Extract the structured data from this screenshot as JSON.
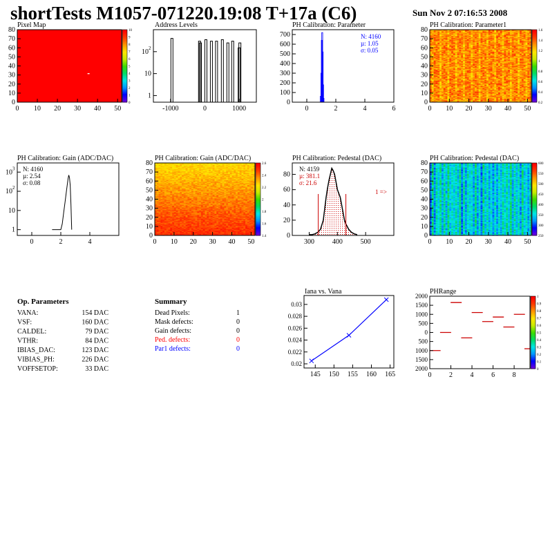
{
  "header": {
    "title": "shortTests M1057-071220.19:08 T+17a (C6)",
    "date": "Sun Nov  2 07:16:53 2008"
  },
  "colors": {
    "red": "#ff0000",
    "blue": "#0000ff",
    "dark_red": "#cc0000",
    "black": "#000000"
  },
  "panels": {
    "pixel_map": {
      "title": "Pixel Map",
      "xticks": [
        "0",
        "10",
        "20",
        "30",
        "40",
        "50"
      ],
      "yticks": [
        "0",
        "10",
        "20",
        "30",
        "40",
        "50",
        "60",
        "70",
        "80"
      ],
      "zticks": [
        "0",
        "1",
        "2",
        "3",
        "4",
        "5",
        "6",
        "7",
        "8",
        "9",
        "10"
      ]
    },
    "address_levels": {
      "title": "Address Levels",
      "xticks": [
        "-1000",
        "0",
        "1000"
      ],
      "yticks": [
        "1",
        "10",
        "10^2"
      ]
    },
    "ph_param": {
      "title": "PH Calibration: Parameter",
      "xticks": [
        "0",
        "2",
        "4",
        "6"
      ],
      "yticks": [
        "0",
        "100",
        "200",
        "300",
        "400",
        "500",
        "600",
        "700"
      ],
      "stats": {
        "n": "N: 4160",
        "mean": "µ: 1.05",
        "sigma": "σ: 0.05"
      }
    },
    "ph_param1": {
      "title": "PH Calibration: Parameter1",
      "xticks": [
        "0",
        "10",
        "20",
        "30",
        "40",
        "50"
      ],
      "yticks": [
        "0",
        "10",
        "20",
        "30",
        "40",
        "50",
        "60",
        "70",
        "80"
      ],
      "zticks": [
        "0.2",
        "0.4",
        "0.6",
        "0.8",
        "1",
        "1.2",
        "1.4",
        "1.6"
      ]
    },
    "gain_hist": {
      "title": "PH Calibration: Gain (ADC/DAC)",
      "xticks": [
        "0",
        "2",
        "4"
      ],
      "yticks": [
        "1",
        "10",
        "10^2",
        "10^3"
      ],
      "stats": {
        "n": "N: 4160",
        "mean": "µ: 2.54",
        "sigma": "σ: 0.08"
      }
    },
    "gain_map": {
      "title": "PH Calibration: Gain (ADC/DAC)",
      "xticks": [
        "0",
        "10",
        "20",
        "30",
        "40",
        "50"
      ],
      "yticks": [
        "0",
        "10",
        "20",
        "30",
        "40",
        "50",
        "60",
        "70",
        "80"
      ],
      "zticks": [
        "1.4",
        "1.6",
        "1.8",
        "2",
        "2.2",
        "2.4",
        "2.6"
      ]
    },
    "pedestal_hist": {
      "title": "PH Calibration: Pedestal (DAC)",
      "xticks": [
        "300",
        "400",
        "500"
      ],
      "yticks": [
        "0",
        "20",
        "40",
        "60",
        "80"
      ],
      "stats": {
        "n": "N: 4159",
        "mean": "µ: 381.1",
        "sigma": "σ: 21.6"
      },
      "arrow_label": "1 =>"
    },
    "pedestal_map": {
      "title": "PH Calibration: Pedestal (DAC)",
      "xticks": [
        "0",
        "10",
        "20",
        "30",
        "40",
        "50"
      ],
      "yticks": [
        "0",
        "10",
        "20",
        "30",
        "40",
        "50",
        "60",
        "70",
        "80"
      ],
      "zticks": [
        "250",
        "300",
        "350",
        "400",
        "450",
        "500",
        "550",
        "600"
      ]
    },
    "iana": {
      "title": "Iana vs. Vana",
      "xticks": [
        "145",
        "150",
        "155",
        "160",
        "165"
      ],
      "yticks": [
        "0.02",
        "0.022",
        "0.024",
        "0.026",
        "0.028",
        "0.03"
      ]
    },
    "phrange": {
      "title": "PHRange",
      "xticks": [
        "0",
        "2",
        "4",
        "6",
        "8"
      ],
      "yticks": [
        "-2000",
        "-1500",
        "-1000",
        "-500",
        "0",
        "500",
        "1000",
        "1500",
        "2000"
      ],
      "yticks_display": [
        "2000",
        "1500",
        "1000",
        "500",
        "0",
        "500",
        "1000",
        "1500",
        "2000"
      ],
      "zticks": [
        "0",
        "0.1",
        "0.2",
        "0.3",
        "0.4",
        "0.5",
        "0.6",
        "0.7",
        "0.8",
        "0.9",
        "1"
      ]
    }
  },
  "op_params": {
    "title": "Op. Parameters",
    "rows": [
      {
        "name": "VANA:",
        "value": "154 DAC"
      },
      {
        "name": "VSF:",
        "value": "160 DAC"
      },
      {
        "name": "CALDEL:",
        "value": "79 DAC"
      },
      {
        "name": "VTHR:",
        "value": "84 DAC"
      },
      {
        "name": "IBIAS_DAC:",
        "value": "123 DAC"
      },
      {
        "name": "VIBIAS_PH:",
        "value": "226 DAC"
      },
      {
        "name": "VOFFSETOP:",
        "value": "33 DAC"
      }
    ]
  },
  "summary": {
    "title": "Summary",
    "rows": [
      {
        "name": "Dead Pixels:",
        "value": "1",
        "color": "#000000"
      },
      {
        "name": "Mask defects:",
        "value": "0",
        "color": "#000000"
      },
      {
        "name": "Gain defects:",
        "value": "0",
        "color": "#000000"
      },
      {
        "name": "Ped. defects:",
        "value": "0",
        "color": "#ff0000"
      },
      {
        "name": "Par1 defects:",
        "value": "0",
        "color": "#0000ff"
      }
    ]
  },
  "chart_data": [
    {
      "type": "heatmap",
      "name": "pixel_map",
      "xlim": [
        0,
        52
      ],
      "ylim": [
        0,
        80
      ],
      "zlim": [
        0,
        10
      ],
      "uniform_value": 10,
      "dead_pixels": [
        {
          "x": 35,
          "y": 31
        }
      ]
    },
    {
      "type": "bar",
      "name": "address_levels",
      "yscale": "log",
      "xlim": [
        -1500,
        1500
      ],
      "ylim": [
        0.5,
        1000
      ],
      "x": [
        -960,
        -155,
        -130,
        30,
        190,
        340,
        510,
        670,
        810,
        1000,
        1020
      ],
      "values": [
        400,
        300,
        250,
        350,
        300,
        300,
        350,
        250,
        300,
        150,
        250
      ]
    },
    {
      "type": "bar",
      "name": "ph_param_hist",
      "xlim": [
        -1,
        6
      ],
      "ylim": [
        0,
        750
      ],
      "x": [
        0.95,
        1.0,
        1.03,
        1.06,
        1.09,
        1.12,
        1.15
      ],
      "values": [
        60,
        300,
        640,
        720,
        520,
        180,
        40
      ]
    },
    {
      "type": "heatmap",
      "name": "ph_param1_map",
      "xlim": [
        0,
        52
      ],
      "ylim": [
        0,
        80
      ],
      "zlim": [
        0.2,
        1.6
      ]
    },
    {
      "type": "line",
      "name": "gain_hist",
      "yscale": "log",
      "xlim": [
        -1,
        6
      ],
      "ylim": [
        0.5,
        3000
      ],
      "x": [
        1.4,
        1.8,
        2.0,
        2.1,
        2.2,
        2.3,
        2.4,
        2.5,
        2.55,
        2.6,
        2.65,
        2.7,
        2.75
      ],
      "values": [
        1,
        1,
        1,
        2,
        8,
        30,
        120,
        450,
        700,
        500,
        200,
        20,
        1
      ]
    },
    {
      "type": "heatmap",
      "name": "gain_map",
      "xlim": [
        0,
        52
      ],
      "ylim": [
        0,
        80
      ],
      "zlim": [
        1.3,
        2.65
      ]
    },
    {
      "type": "bar",
      "name": "pedestal_hist",
      "xlim": [
        240,
        600
      ],
      "ylim": [
        0,
        95
      ],
      "x": [
        300,
        310,
        320,
        330,
        340,
        350,
        355,
        360,
        365,
        370,
        375,
        380,
        385,
        390,
        395,
        400,
        405,
        410,
        415,
        420,
        425,
        430,
        440,
        450,
        460,
        470
      ],
      "values": [
        1,
        1,
        2,
        4,
        8,
        20,
        35,
        50,
        62,
        72,
        80,
        88,
        85,
        80,
        70,
        60,
        55,
        50,
        40,
        30,
        20,
        15,
        8,
        4,
        2,
        1
      ],
      "fit_range": [
        332,
        430
      ]
    },
    {
      "type": "heatmap",
      "name": "pedestal_map",
      "xlim": [
        0,
        52
      ],
      "ylim": [
        0,
        80
      ],
      "zlim": [
        250,
        600
      ]
    },
    {
      "type": "line",
      "name": "iana_vs_vana",
      "xlim": [
        142,
        166
      ],
      "ylim": [
        0.0193,
        0.0315
      ],
      "x": [
        144,
        154,
        164
      ],
      "values": [
        0.0205,
        0.0248,
        0.0308
      ]
    },
    {
      "type": "scatter",
      "name": "phrange",
      "xlim": [
        0,
        9.5
      ],
      "ylim": [
        -2000,
        2000
      ],
      "x": [
        0.5,
        1.5,
        2.5,
        3.5,
        4.5,
        5.5,
        6.5,
        7.5,
        8.5,
        9.5
      ],
      "values": [
        -1000,
        0,
        1650,
        -300,
        1100,
        600,
        850,
        300,
        1000,
        -900
      ]
    }
  ]
}
